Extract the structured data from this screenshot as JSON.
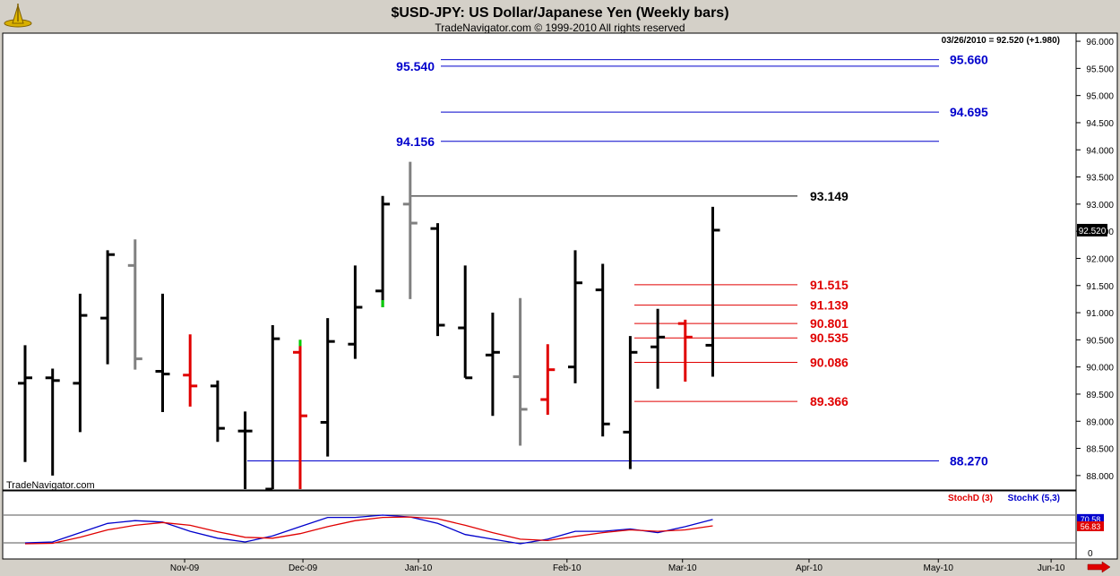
{
  "header": {
    "title": "$USD-JPY:  US Dollar/Japanese Yen  (Weekly bars)",
    "copyright": "TradeNavigator.com © 1999-2010 All rights reserved",
    "quote": "03/26/2010 = 92.520 (+1.980)",
    "watermark": "TradeNavigator.com"
  },
  "colors": {
    "bar_up": "#000000",
    "bar_down_red": "#e00000",
    "bar_gray": "#808080",
    "bar_green": "#00cc00",
    "fib_blue": "#0000cc",
    "fib_red": "#e00000",
    "fib_black": "#000000",
    "stoch_d": "#e00000",
    "stoch_k": "#0000cc"
  },
  "chart_data": [
    {
      "type": "ohlc",
      "title": "$USD-JPY:  US Dollar/Japanese Yen  (Weekly bars)",
      "ylim": [
        87.75,
        96.1
      ],
      "y_ticks": [
        "96.000",
        "95.500",
        "95.000",
        "94.500",
        "94.000",
        "93.500",
        "93.000",
        "92.500",
        "92.000",
        "91.500",
        "91.000",
        "90.500",
        "90.000",
        "89.500",
        "89.000",
        "88.500",
        "88.000"
      ],
      "y_tick_values": [
        96.0,
        95.5,
        95.0,
        94.5,
        94.0,
        93.5,
        93.0,
        92.5,
        92.0,
        91.5,
        91.0,
        90.5,
        90.0,
        89.5,
        89.0,
        88.5,
        88.0
      ],
      "last_price_label": "92.520",
      "last_price": 92.52,
      "x_ticks": [
        "Nov-09",
        "Dec-09",
        "Jan-10",
        "Feb-10",
        "Mar-10",
        "Apr-10",
        "May-10",
        "Jun-10"
      ],
      "x_tick_weeks": [
        5.8,
        10.1,
        14.3,
        19.7,
        23.9,
        28.5,
        33.2,
        37.3
      ],
      "bars": [
        {
          "week": 0,
          "open": 89.7,
          "high": 90.4,
          "low": 88.25,
          "close": 89.8,
          "color": "black"
        },
        {
          "week": 1,
          "open": 89.8,
          "high": 89.97,
          "low": 88.0,
          "close": 89.75,
          "color": "black"
        },
        {
          "week": 2,
          "open": 89.7,
          "high": 91.35,
          "low": 88.8,
          "close": 90.95,
          "color": "black"
        },
        {
          "week": 3,
          "open": 90.9,
          "high": 92.15,
          "low": 90.05,
          "close": 92.07,
          "color": "black"
        },
        {
          "week": 4,
          "open": 91.87,
          "high": 92.35,
          "low": 89.95,
          "close": 90.15,
          "color": "gray"
        },
        {
          "week": 5,
          "open": 89.92,
          "high": 91.35,
          "low": 89.17,
          "close": 89.87,
          "color": "black"
        },
        {
          "week": 6,
          "open": 89.85,
          "high": 90.6,
          "low": 89.27,
          "close": 89.65,
          "color": "red"
        },
        {
          "week": 7,
          "open": 89.65,
          "high": 89.75,
          "low": 88.62,
          "close": 88.87,
          "color": "black"
        },
        {
          "week": 8,
          "open": 88.82,
          "high": 89.18,
          "low": 87.75,
          "close": 88.82,
          "color": "black"
        },
        {
          "week": 9,
          "open": 87.75,
          "high": 90.77,
          "low": 87.75,
          "close": 90.52,
          "color": "black"
        },
        {
          "week": 10,
          "open": 90.27,
          "high": 90.5,
          "low": 87.75,
          "close": 89.1,
          "color": "red",
          "high_tick_color": "green"
        },
        {
          "week": 11,
          "open": 88.98,
          "high": 90.9,
          "low": 88.35,
          "close": 90.47,
          "color": "black"
        },
        {
          "week": 12,
          "open": 90.42,
          "high": 91.87,
          "low": 90.15,
          "close": 91.1,
          "color": "black"
        },
        {
          "week": 13,
          "open": 91.4,
          "high": 93.15,
          "low": 91.1,
          "close": 93.0,
          "color": "black",
          "low_tick_color": "green"
        },
        {
          "week": 14,
          "open": 93.0,
          "high": 93.78,
          "low": 91.25,
          "close": 92.65,
          "color": "gray"
        },
        {
          "week": 15,
          "open": 92.55,
          "high": 92.65,
          "low": 90.57,
          "close": 90.77,
          "color": "black"
        },
        {
          "week": 16,
          "open": 90.72,
          "high": 91.87,
          "low": 89.8,
          "close": 89.8,
          "color": "black"
        },
        {
          "week": 17,
          "open": 90.22,
          "high": 91.0,
          "low": 89.1,
          "close": 90.27,
          "color": "black"
        },
        {
          "week": 18,
          "open": 89.82,
          "high": 91.27,
          "low": 88.55,
          "close": 89.22,
          "color": "gray"
        },
        {
          "week": 19,
          "open": 89.4,
          "high": 90.42,
          "low": 89.12,
          "close": 89.95,
          "color": "red"
        },
        {
          "week": 20,
          "open": 90.0,
          "high": 92.15,
          "low": 89.7,
          "close": 91.55,
          "color": "black"
        },
        {
          "week": 21,
          "open": 91.42,
          "high": 91.9,
          "low": 88.72,
          "close": 88.95,
          "color": "black"
        },
        {
          "week": 22,
          "open": 88.8,
          "high": 90.57,
          "low": 88.12,
          "close": 90.27,
          "color": "black"
        },
        {
          "week": 23,
          "open": 90.37,
          "high": 91.07,
          "low": 89.6,
          "close": 90.55,
          "color": "black"
        },
        {
          "week": 24,
          "open": 90.8,
          "high": 90.87,
          "low": 89.73,
          "close": 90.55,
          "color": "red"
        },
        {
          "week": 25,
          "open": 90.4,
          "high": 92.95,
          "low": 89.82,
          "close": 92.52,
          "color": "black"
        }
      ],
      "fib_lines": [
        {
          "label": "95.660",
          "value": 95.66,
          "color": "blue",
          "label_pos": "right"
        },
        {
          "label": "95.540",
          "value": 95.54,
          "color": "blue",
          "label_pos": "left"
        },
        {
          "label": "94.695",
          "value": 94.695,
          "color": "blue",
          "label_pos": "right"
        },
        {
          "label": "94.156",
          "value": 94.156,
          "color": "blue",
          "label_pos": "left"
        },
        {
          "label": "93.149",
          "value": 93.149,
          "color": "black",
          "label_pos": "right"
        },
        {
          "label": "91.515",
          "value": 91.515,
          "color": "red",
          "label_pos": "right"
        },
        {
          "label": "91.139",
          "value": 91.139,
          "color": "red",
          "label_pos": "right"
        },
        {
          "label": "90.801",
          "value": 90.801,
          "color": "red",
          "label_pos": "right"
        },
        {
          "label": "90.535",
          "value": 90.535,
          "color": "red",
          "label_pos": "right"
        },
        {
          "label": "90.086",
          "value": 90.086,
          "color": "red",
          "label_pos": "right"
        },
        {
          "label": "89.366",
          "value": 89.366,
          "color": "red",
          "label_pos": "right"
        },
        {
          "label": "88.270",
          "value": 88.27,
          "color": "blue",
          "label_pos": "right"
        }
      ]
    },
    {
      "type": "line",
      "title": "",
      "legend": [
        {
          "label": "StochD (3)",
          "color": "red"
        },
        {
          "label": "StochK (5,3)",
          "color": "blue"
        }
      ],
      "ylim": [
        0,
        100
      ],
      "y_ticks": [
        "0"
      ],
      "reference_lines": [
        20,
        80
      ],
      "value_labels": [
        "70.58",
        "56.83"
      ],
      "series": [
        {
          "name": "StochK (5,3)",
          "color": "blue",
          "x": [
            0,
            1,
            2,
            3,
            4,
            5,
            6,
            7,
            8,
            9,
            10,
            11,
            12,
            13,
            14,
            15,
            16,
            17,
            18,
            19,
            20,
            21,
            22,
            23,
            24,
            25
          ],
          "values": [
            20,
            22,
            42,
            62,
            68,
            65,
            45,
            30,
            22,
            35,
            55,
            75,
            75,
            80,
            76,
            62,
            38,
            28,
            18,
            28,
            45,
            45,
            50,
            42,
            55,
            70.58
          ]
        },
        {
          "name": "StochD (3)",
          "color": "red",
          "x": [
            0,
            1,
            2,
            3,
            4,
            5,
            6,
            7,
            8,
            9,
            10,
            11,
            12,
            13,
            14,
            15,
            16,
            17,
            18,
            19,
            20,
            21,
            22,
            23,
            24,
            25
          ],
          "values": [
            18,
            19,
            32,
            48,
            58,
            64,
            58,
            44,
            32,
            30,
            40,
            55,
            68,
            75,
            76,
            72,
            58,
            42,
            28,
            25,
            34,
            42,
            48,
            45,
            48,
            56.83
          ]
        }
      ]
    }
  ]
}
